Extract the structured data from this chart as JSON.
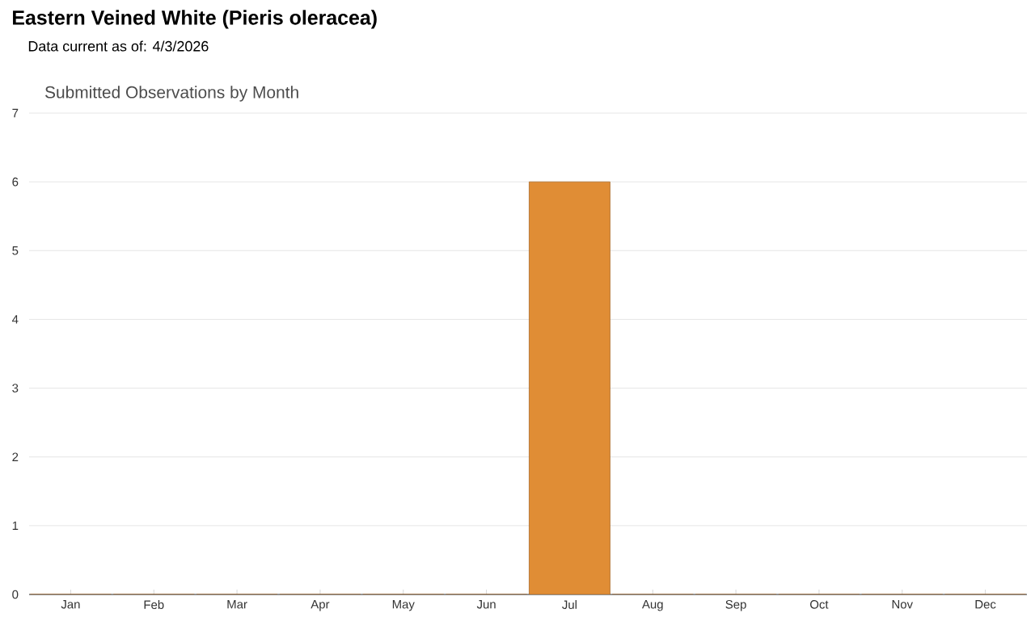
{
  "chart_data": {
    "type": "bar",
    "title": "Eastern Veined White   (Pieris oleracea)",
    "subtitle": "Data current as of: 4/3/2026",
    "annotations": [
      "Submitted Observations by Month"
    ],
    "categories": [
      "Jan",
      "Feb",
      "Mar",
      "Apr",
      "May",
      "Jun",
      "Jul",
      "Aug",
      "Sep",
      "Oct",
      "Nov",
      "Dec"
    ],
    "values": [
      0,
      0,
      0,
      0,
      0,
      0,
      6,
      0,
      0,
      0,
      0,
      0
    ],
    "color": "#e08d35",
    "ylim": [
      0,
      7
    ],
    "yticks": [
      0,
      1,
      2,
      3,
      4,
      5,
      6,
      7
    ],
    "grid": "y"
  }
}
